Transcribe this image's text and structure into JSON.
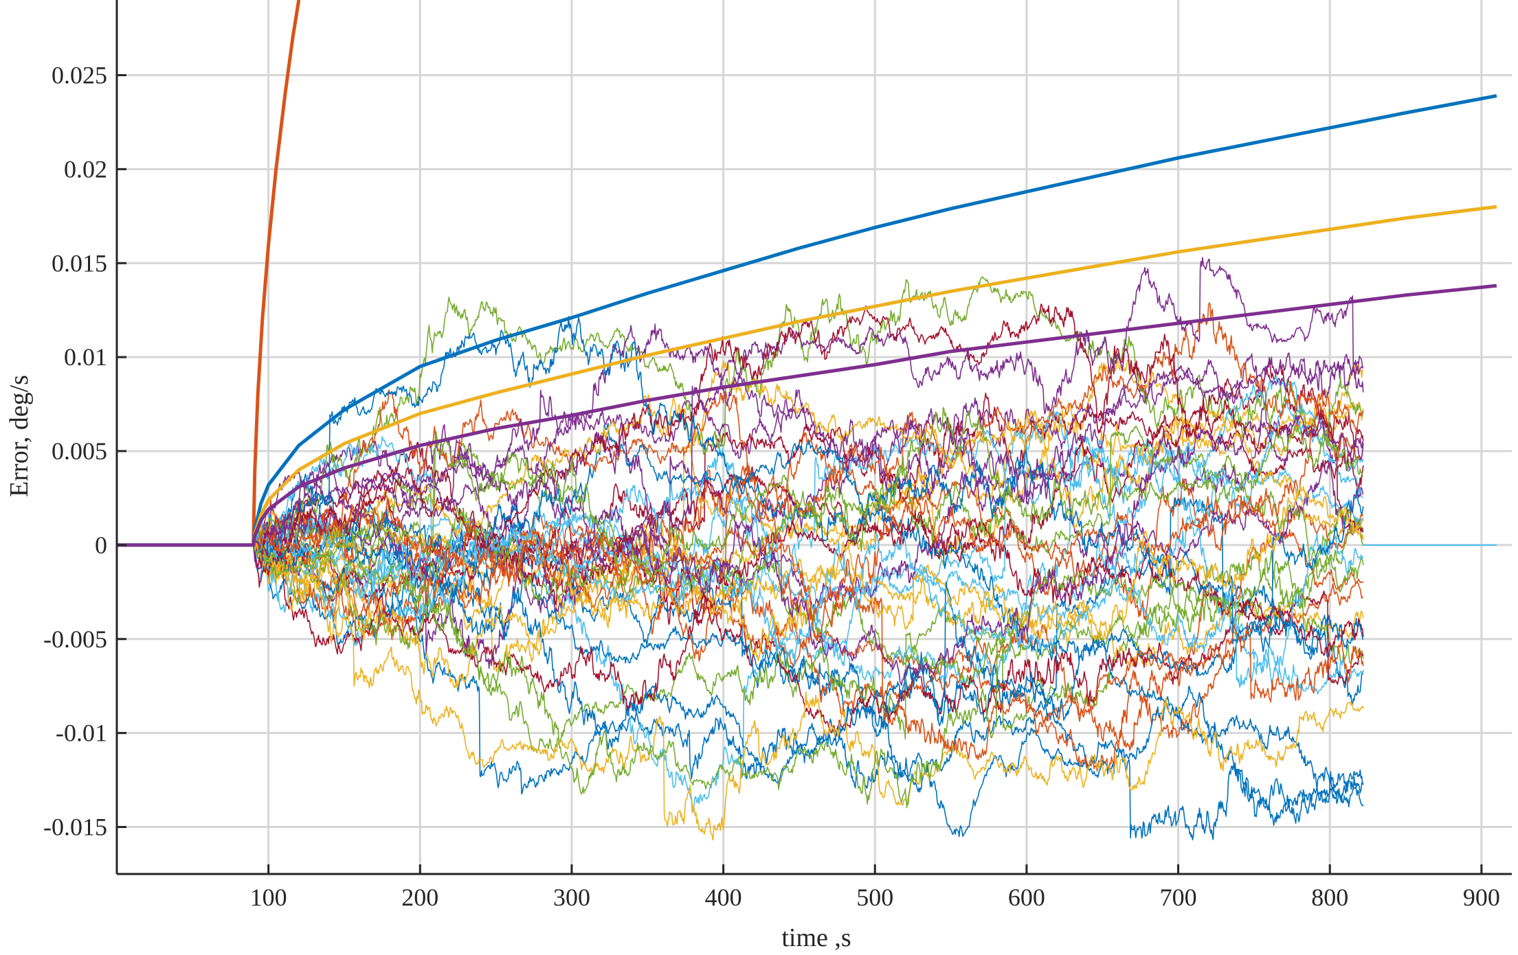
{
  "chart_data": {
    "type": "line",
    "title": "",
    "xlabel": "time ,s",
    "ylabel": "Error, deg/s",
    "xlim": [
      0,
      920
    ],
    "ylim": [
      -0.0175,
      0.029
    ],
    "grid": true,
    "legend": "none",
    "x_ticks": [
      {
        "value": 100,
        "label": "100"
      },
      {
        "value": 200,
        "label": "200"
      },
      {
        "value": 300,
        "label": "300"
      },
      {
        "value": 400,
        "label": "400"
      },
      {
        "value": 500,
        "label": "500"
      },
      {
        "value": 600,
        "label": "600"
      },
      {
        "value": 700,
        "label": "700"
      },
      {
        "value": 800,
        "label": "800"
      },
      {
        "value": 900,
        "label": "900"
      }
    ],
    "y_ticks": [
      {
        "value": -0.015,
        "label": "-0.015"
      },
      {
        "value": -0.01,
        "label": "-0.01"
      },
      {
        "value": -0.005,
        "label": "-0.005"
      },
      {
        "value": 0,
        "label": "0"
      },
      {
        "value": 0.005,
        "label": "0.005"
      },
      {
        "value": 0.01,
        "label": "0.01"
      },
      {
        "value": 0.015,
        "label": "0.015"
      },
      {
        "value": 0.02,
        "label": "0.02"
      },
      {
        "value": 0.025,
        "label": "0.025"
      }
    ],
    "envelopes": [
      {
        "color": "#D95319",
        "points": [
          [
            90,
            0
          ],
          [
            91,
            0.004
          ],
          [
            93,
            0.008
          ],
          [
            96,
            0.012
          ],
          [
            100,
            0.016
          ],
          [
            105,
            0.02
          ],
          [
            111,
            0.024
          ],
          [
            116,
            0.027
          ],
          [
            120,
            0.029
          ]
        ]
      },
      {
        "color": "#0072BD",
        "points": [
          [
            0,
            0
          ],
          [
            90,
            0
          ],
          [
            91,
            0.0008
          ],
          [
            95,
            0.0022
          ],
          [
            100,
            0.0032
          ],
          [
            120,
            0.0053
          ],
          [
            150,
            0.0072
          ],
          [
            200,
            0.0095
          ],
          [
            250,
            0.0109
          ],
          [
            300,
            0.0121
          ],
          [
            350,
            0.0134
          ],
          [
            400,
            0.0146
          ],
          [
            450,
            0.0158
          ],
          [
            500,
            0.0169
          ],
          [
            550,
            0.0179
          ],
          [
            600,
            0.0188
          ],
          [
            650,
            0.0197
          ],
          [
            700,
            0.0206
          ],
          [
            750,
            0.0214
          ],
          [
            800,
            0.0222
          ],
          [
            850,
            0.023
          ],
          [
            910,
            0.0239
          ]
        ]
      },
      {
        "color": "#EDB120",
        "points": [
          [
            90,
            0
          ],
          [
            91,
            0.0006
          ],
          [
            95,
            0.0016
          ],
          [
            100,
            0.0024
          ],
          [
            120,
            0.004
          ],
          [
            150,
            0.0054
          ],
          [
            200,
            0.007
          ],
          [
            250,
            0.0081
          ],
          [
            300,
            0.0091
          ],
          [
            350,
            0.0101
          ],
          [
            400,
            0.011
          ],
          [
            450,
            0.0119
          ],
          [
            500,
            0.0127
          ],
          [
            550,
            0.0135
          ],
          [
            600,
            0.0142
          ],
          [
            650,
            0.0149
          ],
          [
            700,
            0.0156
          ],
          [
            750,
            0.0162
          ],
          [
            800,
            0.0168
          ],
          [
            850,
            0.0174
          ],
          [
            910,
            0.018
          ]
        ]
      },
      {
        "color": "#7E2F8E",
        "points": [
          [
            0,
            0
          ],
          [
            90,
            0
          ],
          [
            91,
            0.0005
          ],
          [
            95,
            0.0013
          ],
          [
            100,
            0.0019
          ],
          [
            120,
            0.0031
          ],
          [
            150,
            0.0041
          ],
          [
            200,
            0.0053
          ],
          [
            250,
            0.0062
          ],
          [
            300,
            0.0069
          ],
          [
            350,
            0.0077
          ],
          [
            400,
            0.0084
          ],
          [
            450,
            0.009
          ],
          [
            500,
            0.0096
          ],
          [
            550,
            0.0103
          ],
          [
            600,
            0.0108
          ],
          [
            650,
            0.0113
          ],
          [
            700,
            0.0118
          ],
          [
            750,
            0.0123
          ],
          [
            800,
            0.0128
          ],
          [
            850,
            0.0133
          ],
          [
            910,
            0.0138
          ]
        ]
      }
    ],
    "noise_series": {
      "count": 40,
      "x_start": 90,
      "x_end": 822,
      "baseline_until": 90,
      "baseline_color": "#4DBEEE",
      "colors": [
        "#0072BD",
        "#D95319",
        "#EDB120",
        "#7E2F8E",
        "#77AC30",
        "#4DBEEE",
        "#A2142F"
      ],
      "value_range": [
        -0.0157,
        0.0153
      ]
    }
  }
}
